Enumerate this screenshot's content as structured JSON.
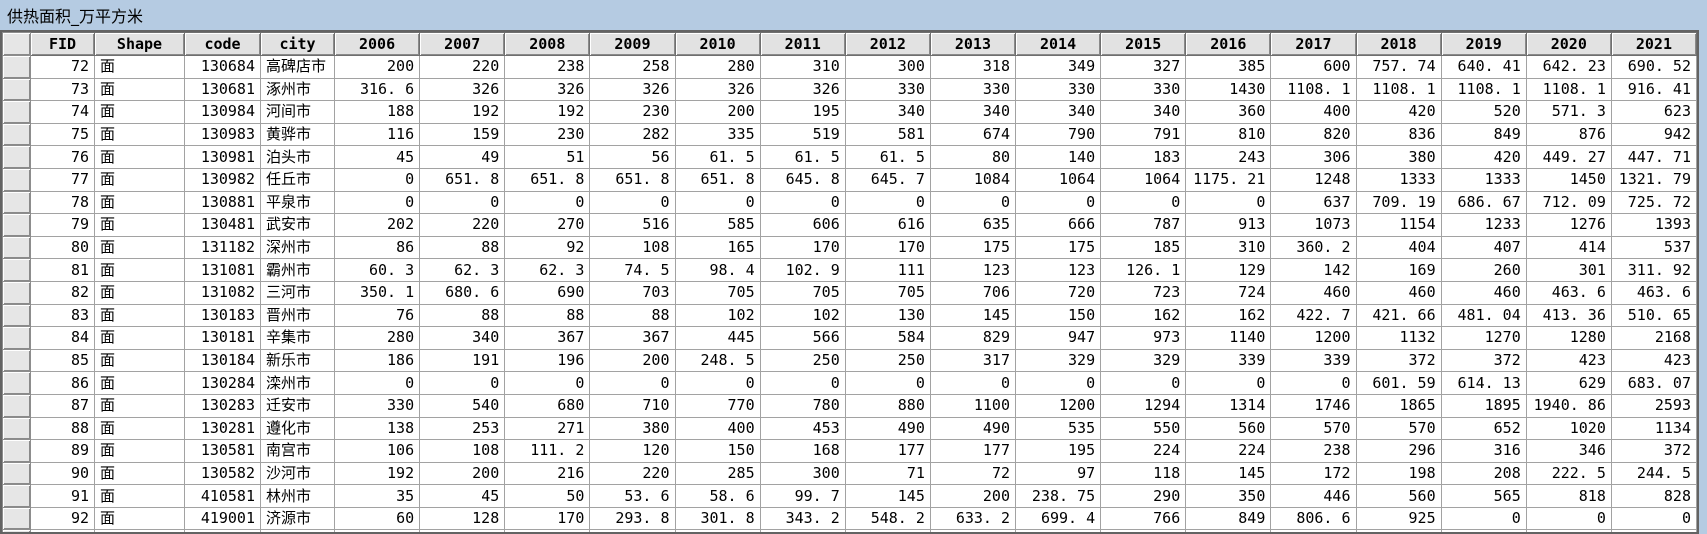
{
  "window": {
    "title": "供热面积_万平方米"
  },
  "colors": {
    "titlebar_bg": "#b5cbe2",
    "header_bg": "#e2e2e2",
    "selector_bg": "#e6e6e6",
    "cell_bg": "#ffffff",
    "grid_line": "#a2a2a2",
    "frame_border": "#636363",
    "text": "#000000"
  },
  "table": {
    "columns": [
      "FID",
      "Shape",
      "code",
      "city",
      "2006",
      "2007",
      "2008",
      "2009",
      "2010",
      "2011",
      "2012",
      "2013",
      "2014",
      "2015",
      "2016",
      "2017",
      "2018",
      "2019",
      "2020",
      "2021"
    ],
    "rows": [
      {
        "fid": "72",
        "shape": "面",
        "code": "130684",
        "city": "高碑店市",
        "values": [
          "200",
          "220",
          "238",
          "258",
          "280",
          "310",
          "300",
          "318",
          "349",
          "327",
          "385",
          "600",
          "757. 74",
          "640. 41",
          "642. 23",
          "690. 52"
        ]
      },
      {
        "fid": "73",
        "shape": "面",
        "code": "130681",
        "city": "涿州市",
        "values": [
          "316. 6",
          "326",
          "326",
          "326",
          "326",
          "326",
          "330",
          "330",
          "330",
          "330",
          "1430",
          "1108. 1",
          "1108. 1",
          "1108. 1",
          "1108. 1",
          "916. 41"
        ]
      },
      {
        "fid": "74",
        "shape": "面",
        "code": "130984",
        "city": "河间市",
        "values": [
          "188",
          "192",
          "192",
          "230",
          "200",
          "195",
          "340",
          "340",
          "340",
          "340",
          "360",
          "400",
          "420",
          "520",
          "571. 3",
          "623"
        ]
      },
      {
        "fid": "75",
        "shape": "面",
        "code": "130983",
        "city": "黄骅市",
        "values": [
          "116",
          "159",
          "230",
          "282",
          "335",
          "519",
          "581",
          "674",
          "790",
          "791",
          "810",
          "820",
          "836",
          "849",
          "876",
          "942"
        ]
      },
      {
        "fid": "76",
        "shape": "面",
        "code": "130981",
        "city": "泊头市",
        "values": [
          "45",
          "49",
          "51",
          "56",
          "61. 5",
          "61. 5",
          "61. 5",
          "80",
          "140",
          "183",
          "243",
          "306",
          "380",
          "420",
          "449. 27",
          "447. 71"
        ]
      },
      {
        "fid": "77",
        "shape": "面",
        "code": "130982",
        "city": "任丘市",
        "values": [
          "0",
          "651. 8",
          "651. 8",
          "651. 8",
          "651. 8",
          "645. 8",
          "645. 7",
          "1084",
          "1064",
          "1064",
          "1175. 21",
          "1248",
          "1333",
          "1333",
          "1450",
          "1321. 79"
        ]
      },
      {
        "fid": "78",
        "shape": "面",
        "code": "130881",
        "city": "平泉市",
        "values": [
          "0",
          "0",
          "0",
          "0",
          "0",
          "0",
          "0",
          "0",
          "0",
          "0",
          "0",
          "637",
          "709. 19",
          "686. 67",
          "712. 09",
          "725. 72"
        ]
      },
      {
        "fid": "79",
        "shape": "面",
        "code": "130481",
        "city": "武安市",
        "values": [
          "202",
          "220",
          "270",
          "516",
          "585",
          "606",
          "616",
          "635",
          "666",
          "787",
          "913",
          "1073",
          "1154",
          "1233",
          "1276",
          "1393"
        ]
      },
      {
        "fid": "80",
        "shape": "面",
        "code": "131182",
        "city": "深州市",
        "values": [
          "86",
          "88",
          "92",
          "108",
          "165",
          "170",
          "170",
          "175",
          "175",
          "185",
          "310",
          "360. 2",
          "404",
          "407",
          "414",
          "537"
        ]
      },
      {
        "fid": "81",
        "shape": "面",
        "code": "131081",
        "city": "霸州市",
        "values": [
          "60. 3",
          "62. 3",
          "62. 3",
          "74. 5",
          "98. 4",
          "102. 9",
          "111",
          "123",
          "123",
          "126. 1",
          "129",
          "142",
          "169",
          "260",
          "301",
          "311. 92"
        ]
      },
      {
        "fid": "82",
        "shape": "面",
        "code": "131082",
        "city": "三河市",
        "values": [
          "350. 1",
          "680. 6",
          "690",
          "703",
          "705",
          "705",
          "705",
          "706",
          "720",
          "723",
          "724",
          "460",
          "460",
          "460",
          "463. 6",
          "463. 6"
        ]
      },
      {
        "fid": "83",
        "shape": "面",
        "code": "130183",
        "city": "晋州市",
        "values": [
          "76",
          "88",
          "88",
          "88",
          "102",
          "102",
          "130",
          "145",
          "150",
          "162",
          "162",
          "422. 7",
          "421. 66",
          "481. 04",
          "413. 36",
          "510. 65"
        ]
      },
      {
        "fid": "84",
        "shape": "面",
        "code": "130181",
        "city": "辛集市",
        "values": [
          "280",
          "340",
          "367",
          "367",
          "445",
          "566",
          "584",
          "829",
          "947",
          "973",
          "1140",
          "1200",
          "1132",
          "1270",
          "1280",
          "2168"
        ]
      },
      {
        "fid": "85",
        "shape": "面",
        "code": "130184",
        "city": "新乐市",
        "values": [
          "186",
          "191",
          "196",
          "200",
          "248. 5",
          "250",
          "250",
          "317",
          "329",
          "329",
          "339",
          "339",
          "372",
          "372",
          "423",
          "423"
        ]
      },
      {
        "fid": "86",
        "shape": "面",
        "code": "130284",
        "city": "滦州市",
        "values": [
          "0",
          "0",
          "0",
          "0",
          "0",
          "0",
          "0",
          "0",
          "0",
          "0",
          "0",
          "0",
          "601. 59",
          "614. 13",
          "629",
          "683. 07"
        ]
      },
      {
        "fid": "87",
        "shape": "面",
        "code": "130283",
        "city": "迁安市",
        "values": [
          "330",
          "540",
          "680",
          "710",
          "770",
          "780",
          "880",
          "1100",
          "1200",
          "1294",
          "1314",
          "1746",
          "1865",
          "1895",
          "1940. 86",
          "2593"
        ]
      },
      {
        "fid": "88",
        "shape": "面",
        "code": "130281",
        "city": "遵化市",
        "values": [
          "138",
          "253",
          "271",
          "380",
          "400",
          "453",
          "490",
          "490",
          "535",
          "550",
          "560",
          "570",
          "570",
          "652",
          "1020",
          "1134"
        ]
      },
      {
        "fid": "89",
        "shape": "面",
        "code": "130581",
        "city": "南宫市",
        "values": [
          "106",
          "108",
          "111. 2",
          "120",
          "150",
          "168",
          "177",
          "177",
          "195",
          "224",
          "224",
          "238",
          "296",
          "316",
          "346",
          "372"
        ]
      },
      {
        "fid": "90",
        "shape": "面",
        "code": "130582",
        "city": "沙河市",
        "values": [
          "192",
          "200",
          "216",
          "220",
          "285",
          "300",
          "71",
          "72",
          "97",
          "118",
          "145",
          "172",
          "198",
          "208",
          "222. 5",
          "244. 5"
        ]
      },
      {
        "fid": "91",
        "shape": "面",
        "code": "410581",
        "city": "林州市",
        "values": [
          "35",
          "45",
          "50",
          "53. 6",
          "58. 6",
          "99. 7",
          "145",
          "200",
          "238. 75",
          "290",
          "350",
          "446",
          "560",
          "565",
          "818",
          "828"
        ]
      },
      {
        "fid": "92",
        "shape": "面",
        "code": "419001",
        "city": "济源市",
        "values": [
          "60",
          "128",
          "170",
          "293. 8",
          "301. 8",
          "343. 2",
          "548. 2",
          "633. 2",
          "699. 4",
          "766",
          "849",
          "806. 6",
          "925",
          "0",
          "0",
          "0"
        ]
      }
    ]
  }
}
